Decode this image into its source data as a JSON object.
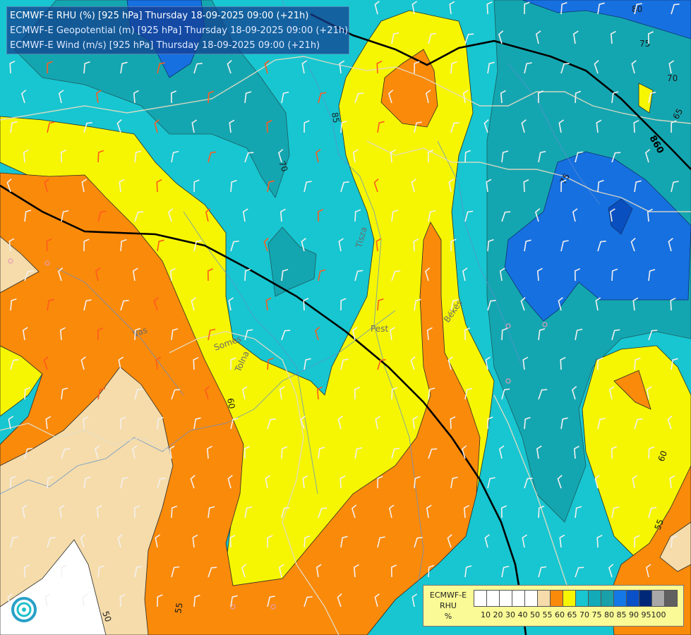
{
  "header": {
    "line1": "ECMWF-E RHU (%) [925 hPa] Thursday 18-09-2025 09:00 (+21h)",
    "line2": "ECMWF-E Geopotential (m) [925 hPa] Thursday 18-09-2025 09:00 (+21h)",
    "line3": "ECMWF-E Wind (m/s) [925 hPa] Thursday 18-09-2025 09:00 (+21h)"
  },
  "legend": {
    "name_line1": "ECMWF-E",
    "name_line2": "RHU",
    "unit": "%",
    "colors": [
      "#ffffff",
      "#ffffff",
      "#ffffff",
      "#ffffff",
      "#ffffff",
      "#f5dcaa",
      "#fa8a0a",
      "#f6f602",
      "#17c6d0",
      "#12aab8",
      "#1aa0a8",
      "#1478e6",
      "#0a50c8",
      "#002878",
      "#a8a8a8",
      "#606060"
    ],
    "ticks": [
      "10",
      "20",
      "30",
      "40",
      "50",
      "55",
      "60",
      "65",
      "70",
      "75",
      "80",
      "85",
      "90",
      "95",
      "100"
    ]
  },
  "contours": {
    "rhu_labels": [
      "85",
      "70",
      "75",
      "80",
      "75",
      "70",
      "65",
      "60",
      "50",
      "55",
      "60",
      "55"
    ],
    "geopotential_label": "860"
  },
  "place_labels": [
    "Pest",
    "Békés",
    "Tisza",
    "Somes",
    "Tolna",
    "Vas"
  ],
  "palette": {
    "cyan": "#17c6d0",
    "teal": "#14a6b0",
    "dark_teal": "#1b9aa4",
    "yellow": "#f6f602",
    "orange": "#fa8a0a",
    "beige": "#f5dcaa",
    "blue": "#1670e0",
    "deep_blue": "#0a4fc0",
    "white": "#ffffff"
  }
}
